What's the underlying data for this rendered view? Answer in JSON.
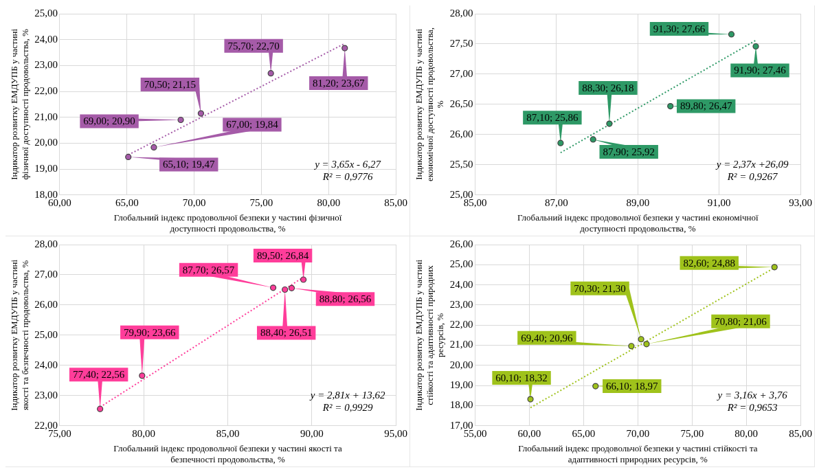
{
  "chart_data": [
    {
      "type": "scatter",
      "xlabel": "Глобальний індекс продовольчої безпеки у частині фізичної доступності продовольства, %",
      "ylabel": "Індикатор розвитку ЕМДУПБ у частині фізичної доступності продовольства, %",
      "xlim": [
        60,
        85
      ],
      "xticks": [
        {
          "value": 60,
          "label": "60,00"
        },
        {
          "value": 65,
          "label": "65,00"
        },
        {
          "value": 70,
          "label": "70,00"
        },
        {
          "value": 75,
          "label": "75,00"
        },
        {
          "value": 80,
          "label": "80,00"
        },
        {
          "value": 85,
          "label": "85,00"
        }
      ],
      "ylim": [
        18,
        25
      ],
      "yticks": [
        {
          "value": 18,
          "label": "18,00"
        },
        {
          "value": 19,
          "label": "19,00"
        },
        {
          "value": 20,
          "label": "20,00"
        },
        {
          "value": 21,
          "label": "21,00"
        },
        {
          "value": 22,
          "label": "22,00"
        },
        {
          "value": 23,
          "label": "23,00"
        },
        {
          "value": 24,
          "label": "24,00"
        },
        {
          "value": 25,
          "label": "25,00"
        }
      ],
      "grid": true,
      "legend": false,
      "annotations": [
        "y = 3,65x - 6,27",
        "R² = 0,9776"
      ],
      "series": [
        {
          "type": "scatter",
          "color": "#a55ba8",
          "marker": "circle",
          "x": [
            65.1,
            67.0,
            69.0,
            70.5,
            75.7,
            81.2
          ],
          "values": [
            19.47,
            19.84,
            20.9,
            21.15,
            22.7,
            23.67
          ],
          "value_labels": [
            "65,10; 19,47",
            "67,00; 19,84",
            "69,00; 20,90",
            "70,50; 21,15",
            "75,70; 22,70",
            "81,20; 23,67"
          ]
        },
        {
          "type": "line",
          "color": "#a55ba8",
          "marker": "none",
          "line_style": "dotted",
          "x": [
            65.1,
            81.2
          ],
          "values": [
            19.55,
            23.85
          ]
        }
      ]
    },
    {
      "type": "scatter",
      "xlabel": "Глобальний індекс продовольчої безпеки у частині економічної доступності продовольства, %",
      "ylabel": "Індикатор розвитку ЕМДУПБ у частині економічної доступності продовольства, %",
      "xlim": [
        85,
        93
      ],
      "xticks": [
        {
          "value": 85,
          "label": "85,00"
        },
        {
          "value": 87,
          "label": "87,00"
        },
        {
          "value": 89,
          "label": "89,00"
        },
        {
          "value": 91,
          "label": "91,00"
        },
        {
          "value": 93,
          "label": "93,00"
        }
      ],
      "ylim": [
        25,
        28
      ],
      "yticks": [
        {
          "value": 25,
          "label": "25,00"
        },
        {
          "value": 25.5,
          "label": "25,50"
        },
        {
          "value": 26,
          "label": "26,00"
        },
        {
          "value": 26.5,
          "label": "26,50"
        },
        {
          "value": 27,
          "label": "27,00"
        },
        {
          "value": 27.5,
          "label": "27,50"
        },
        {
          "value": 28,
          "label": "28,00"
        }
      ],
      "grid": true,
      "legend": false,
      "annotations": [
        "y = 2,37x +26,09",
        "R² = 0,9267"
      ],
      "series": [
        {
          "type": "scatter",
          "color": "#2e9966",
          "marker": "circle",
          "x": [
            87.1,
            87.9,
            88.3,
            89.8,
            91.3,
            91.9
          ],
          "values": [
            25.86,
            25.92,
            26.18,
            26.47,
            27.66,
            27.46
          ],
          "value_labels": [
            "87,10; 25,86",
            "87,90; 25,92",
            "88,30; 26,18",
            "89,80; 26,47",
            "91,30; 27,66",
            "91,90; 27,46"
          ]
        },
        {
          "type": "line",
          "color": "#2e9966",
          "marker": "none",
          "line_style": "dotted",
          "x": [
            87.1,
            91.9
          ],
          "values": [
            25.7,
            27.56
          ]
        }
      ]
    },
    {
      "type": "scatter",
      "xlabel": "Глобальний індекс продовольчої безпеки у частині якості та безпечності продовольства, %",
      "ylabel": "Індикатор розвитку ЕМДУПБ у частині якості та безпечності продовольства, %",
      "xlim": [
        75,
        95
      ],
      "xticks": [
        {
          "value": 75,
          "label": "75,00"
        },
        {
          "value": 80,
          "label": "80,00"
        },
        {
          "value": 85,
          "label": "85,00"
        },
        {
          "value": 90,
          "label": "90,00"
        },
        {
          "value": 95,
          "label": "95,00"
        }
      ],
      "ylim": [
        22,
        28
      ],
      "yticks": [
        {
          "value": 22,
          "label": "22,00"
        },
        {
          "value": 23,
          "label": "23,00"
        },
        {
          "value": 24,
          "label": "24,00"
        },
        {
          "value": 25,
          "label": "25,00"
        },
        {
          "value": 26,
          "label": "26,00"
        },
        {
          "value": 27,
          "label": "27,00"
        },
        {
          "value": 28,
          "label": "28,00"
        }
      ],
      "grid": true,
      "legend": false,
      "annotations": [
        "y = 2,81x + 13,62",
        "R² = 0,9929"
      ],
      "series": [
        {
          "type": "scatter",
          "color": "#ff3d9a",
          "marker": "circle",
          "x": [
            77.4,
            79.9,
            87.7,
            88.4,
            88.8,
            89.5
          ],
          "values": [
            22.56,
            23.66,
            26.57,
            26.51,
            26.56,
            26.84
          ],
          "value_labels": [
            "77,40; 22,56",
            "79,90; 23,66",
            "87,70; 26,57",
            "88,40; 26,51",
            "88,80; 26,56",
            "89,50; 26,84"
          ]
        },
        {
          "type": "line",
          "color": "#ff3d9a",
          "marker": "none",
          "line_style": "dotted",
          "x": [
            77.4,
            89.5
          ],
          "values": [
            22.62,
            26.92
          ]
        }
      ]
    },
    {
      "type": "scatter",
      "xlabel": "Глобальний індекс продовольчої безпеки у частині стійкості та адаптивності природних ресурсів, %",
      "ylabel": "Індикатор розвитку ЕМДУПБ у частині стійкості та адаптивності природних ресурсів, %",
      "xlim": [
        55,
        85
      ],
      "xticks": [
        {
          "value": 55,
          "label": "55,00"
        },
        {
          "value": 60,
          "label": "60,00"
        },
        {
          "value": 65,
          "label": "65,00"
        },
        {
          "value": 70,
          "label": "70,00"
        },
        {
          "value": 75,
          "label": "75,00"
        },
        {
          "value": 80,
          "label": "80,00"
        },
        {
          "value": 85,
          "label": "85,00"
        }
      ],
      "ylim": [
        17,
        26
      ],
      "yticks": [
        {
          "value": 17,
          "label": "17,00"
        },
        {
          "value": 18,
          "label": "18,00"
        },
        {
          "value": 19,
          "label": "19,00"
        },
        {
          "value": 20,
          "label": "20,00"
        },
        {
          "value": 21,
          "label": "21,00"
        },
        {
          "value": 22,
          "label": "22,00"
        },
        {
          "value": 23,
          "label": "23,00"
        },
        {
          "value": 24,
          "label": "24,00"
        },
        {
          "value": 25,
          "label": "25,00"
        },
        {
          "value": 26,
          "label": "26,00"
        }
      ],
      "grid": true,
      "legend": false,
      "annotations": [
        "y = 3,16x + 3,76",
        "R² = 0,9653"
      ],
      "series": [
        {
          "type": "scatter",
          "color": "#9fc21b",
          "marker": "circle",
          "x": [
            60.1,
            66.1,
            69.4,
            70.3,
            70.8,
            82.6
          ],
          "values": [
            18.32,
            18.97,
            20.96,
            21.3,
            21.06,
            24.88
          ],
          "value_labels": [
            "60,10; 18,32",
            "66,10; 18,97",
            "69,40; 20,96",
            "70,30; 21,30",
            "70,80; 21,06",
            "82,60; 24,88"
          ]
        },
        {
          "type": "line",
          "color": "#9fc21b",
          "marker": "none",
          "line_style": "dotted",
          "x": [
            60.1,
            82.6
          ],
          "values": [
            17.9,
            24.85
          ]
        }
      ]
    }
  ]
}
